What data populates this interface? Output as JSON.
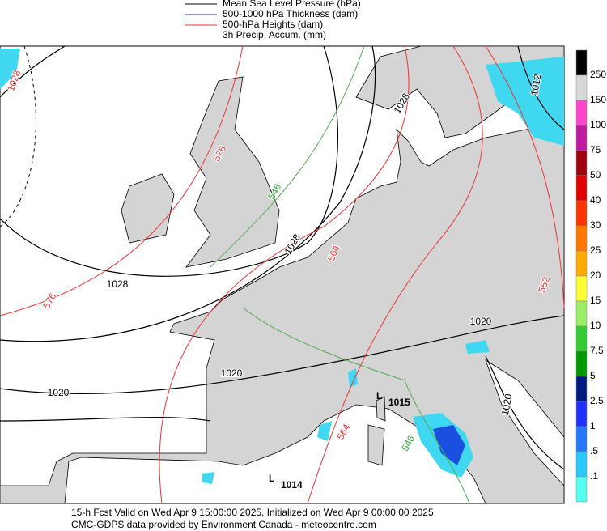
{
  "legend": [
    "Mean Sea Level Pressure (hPa)",
    "500-1000 hPa Thickness (dam)",
    "500-hPa Heights (dam)",
    "3h Precip. Accum. (mm)"
  ],
  "colorbar": [
    "250",
    "150",
    "100",
    "75",
    "50",
    "40",
    "30",
    "25",
    "20",
    "15",
    "10",
    "7.5",
    "5",
    "2.5",
    "1",
    ".5",
    ".1"
  ],
  "map_labels": [
    "1028",
    "1028",
    "1012",
    "1028",
    "1028",
    "1020",
    "1020",
    "1020",
    "1020",
    "576",
    "576",
    "564",
    "552",
    "546",
    "546",
    "564"
  ],
  "lows": [
    {
      "letter": "L",
      "pressure": "1015"
    },
    {
      "letter": "L",
      "pressure": "1014"
    }
  ],
  "footer": [
    "15-h Fcst Valid on Wed Apr  9 15:00:00 2025, Initialized on Wed Apr  9 00:00:00 2025",
    "CMC-GDPS data provided by Environment Canada - meteocentre.com"
  ]
}
